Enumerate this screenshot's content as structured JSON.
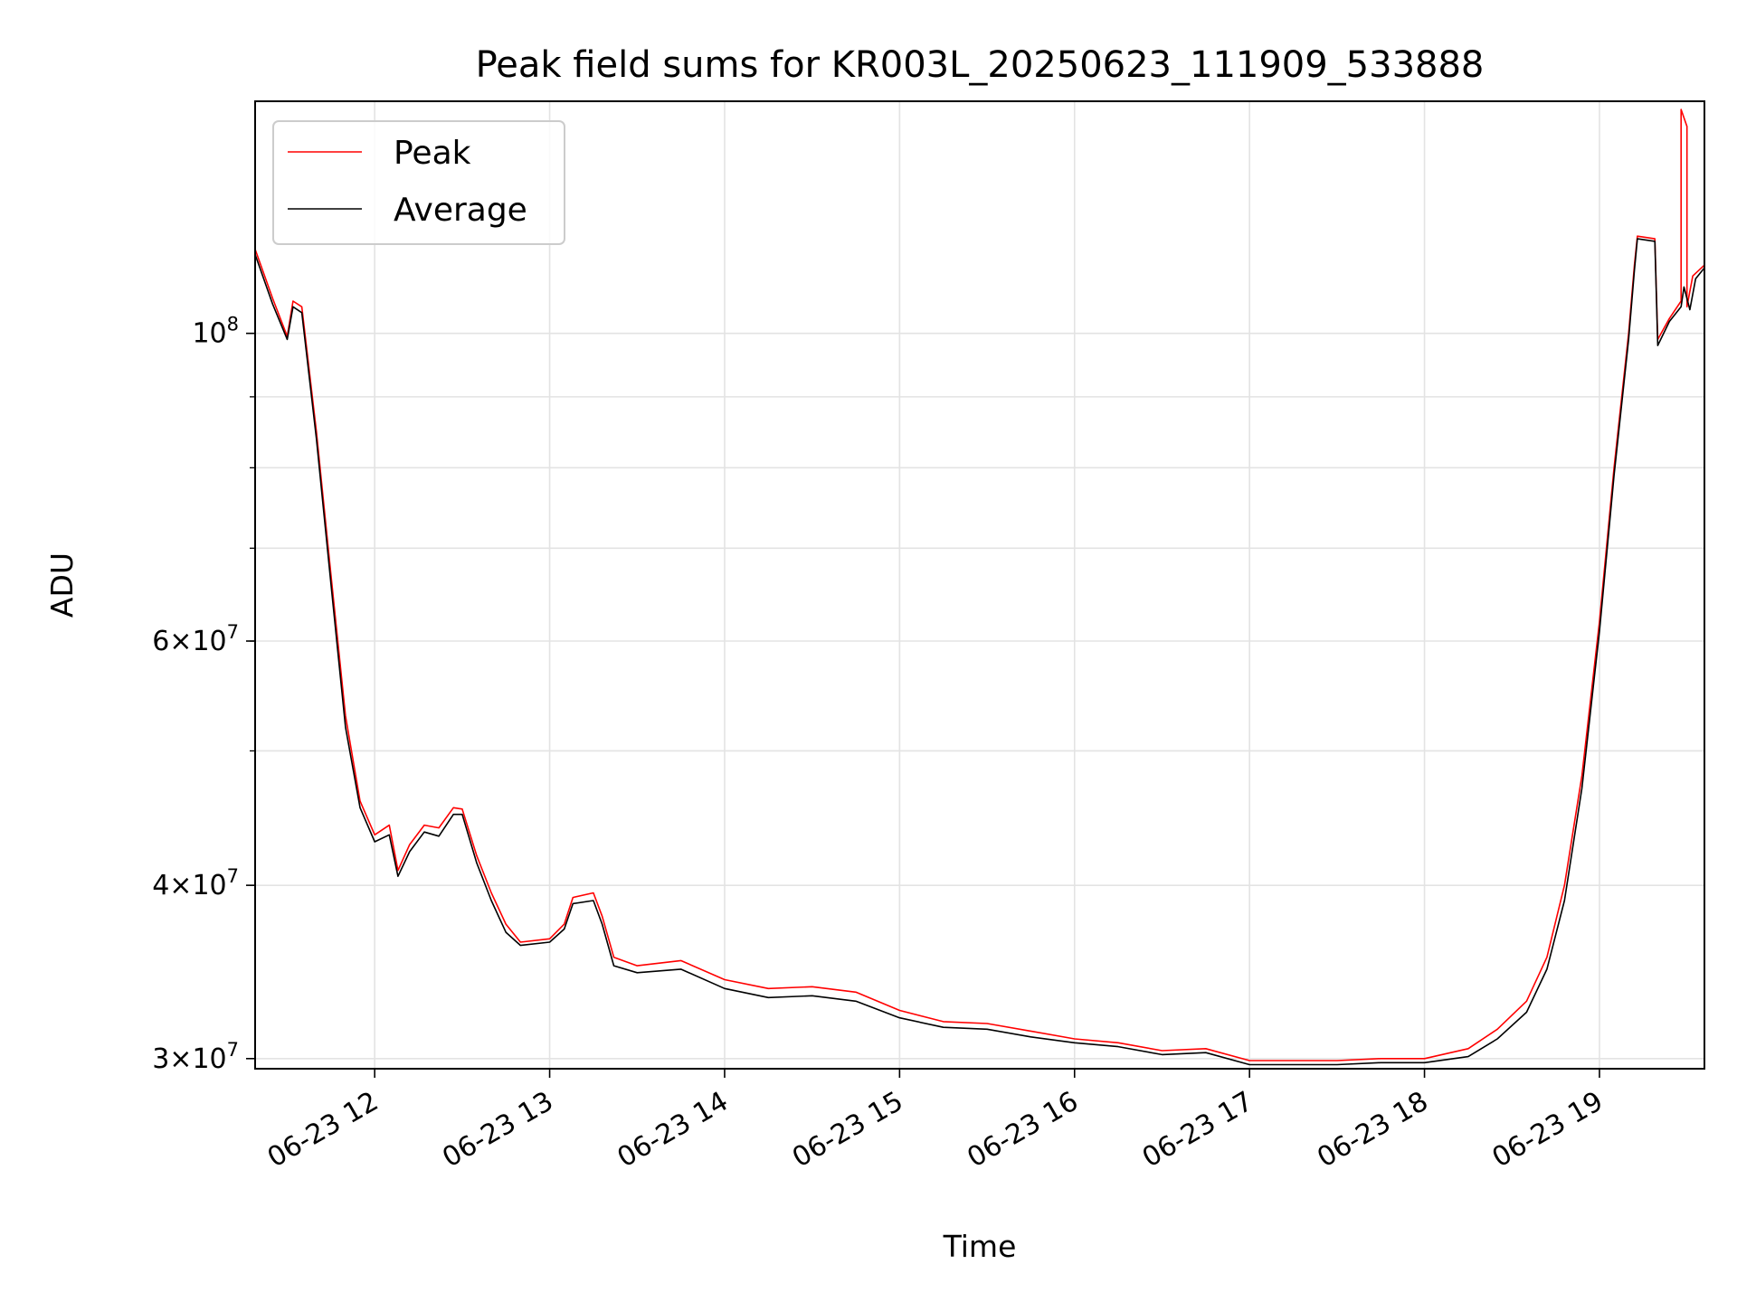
{
  "chart_data": {
    "type": "line",
    "title": "Peak field sums for KR003L_20250623_111909_533888",
    "xlabel": "Time",
    "ylabel": "ADU",
    "y_scale": "log",
    "xlim": [
      "2025-06-23 11:19",
      "2025-06-23 19:36"
    ],
    "ylim": [
      29500000,
      147000000
    ],
    "grid": true,
    "legend": "upper left",
    "x_ticks": [
      {
        "value": "2025-06-23 12:00",
        "label": "06-23 12"
      },
      {
        "value": "2025-06-23 13:00",
        "label": "06-23 13"
      },
      {
        "value": "2025-06-23 14:00",
        "label": "06-23 14"
      },
      {
        "value": "2025-06-23 15:00",
        "label": "06-23 15"
      },
      {
        "value": "2025-06-23 16:00",
        "label": "06-23 16"
      },
      {
        "value": "2025-06-23 17:00",
        "label": "06-23 17"
      },
      {
        "value": "2025-06-23 18:00",
        "label": "06-23 18"
      },
      {
        "value": "2025-06-23 19:00",
        "label": "06-23 19"
      }
    ],
    "y_ticks": [
      {
        "value": 30000000,
        "mant": "3",
        "exp": "7"
      },
      {
        "value": 40000000,
        "mant": "4",
        "exp": "7"
      },
      {
        "value": 60000000,
        "mant": "6",
        "exp": "7"
      },
      {
        "value": 100000000,
        "mant": "",
        "exp": "8"
      }
    ],
    "series": [
      {
        "name": "Peak",
        "color": "#ff0000",
        "points": [
          [
            "2025-06-23 11:19",
            115000000
          ],
          [
            "2025-06-23 11:25",
            106000000
          ],
          [
            "2025-06-23 11:30",
            99500000
          ],
          [
            "2025-06-23 11:32",
            105500000
          ],
          [
            "2025-06-23 11:35",
            104500000
          ],
          [
            "2025-06-23 11:40",
            85000000
          ],
          [
            "2025-06-23 11:45",
            67000000
          ],
          [
            "2025-06-23 11:50",
            53000000
          ],
          [
            "2025-06-23 11:55",
            46000000
          ],
          [
            "2025-06-23 12:00",
            43500000
          ],
          [
            "2025-06-23 12:05",
            44200000
          ],
          [
            "2025-06-23 12:08",
            41000000
          ],
          [
            "2025-06-23 12:12",
            42800000
          ],
          [
            "2025-06-23 12:17",
            44200000
          ],
          [
            "2025-06-23 12:22",
            44000000
          ],
          [
            "2025-06-23 12:27",
            45500000
          ],
          [
            "2025-06-23 12:30",
            45400000
          ],
          [
            "2025-06-23 12:35",
            42000000
          ],
          [
            "2025-06-23 12:40",
            39500000
          ],
          [
            "2025-06-23 12:45",
            37500000
          ],
          [
            "2025-06-23 12:50",
            36400000
          ],
          [
            "2025-06-23 13:00",
            36600000
          ],
          [
            "2025-06-23 13:05",
            37500000
          ],
          [
            "2025-06-23 13:08",
            39200000
          ],
          [
            "2025-06-23 13:15",
            39500000
          ],
          [
            "2025-06-23 13:18",
            38000000
          ],
          [
            "2025-06-23 13:22",
            35500000
          ],
          [
            "2025-06-23 13:30",
            35000000
          ],
          [
            "2025-06-23 13:45",
            35300000
          ],
          [
            "2025-06-23 14:00",
            34200000
          ],
          [
            "2025-06-23 14:15",
            33700000
          ],
          [
            "2025-06-23 14:30",
            33800000
          ],
          [
            "2025-06-23 14:45",
            33500000
          ],
          [
            "2025-06-23 15:00",
            32500000
          ],
          [
            "2025-06-23 15:15",
            31900000
          ],
          [
            "2025-06-23 15:30",
            31800000
          ],
          [
            "2025-06-23 15:45",
            31400000
          ],
          [
            "2025-06-23 16:00",
            31000000
          ],
          [
            "2025-06-23 16:15",
            30800000
          ],
          [
            "2025-06-23 16:30",
            30400000
          ],
          [
            "2025-06-23 16:45",
            30500000
          ],
          [
            "2025-06-23 17:00",
            29900000
          ],
          [
            "2025-06-23 17:15",
            29900000
          ],
          [
            "2025-06-23 17:30",
            29900000
          ],
          [
            "2025-06-23 17:45",
            30000000
          ],
          [
            "2025-06-23 18:00",
            30000000
          ],
          [
            "2025-06-23 18:15",
            30500000
          ],
          [
            "2025-06-23 18:25",
            31500000
          ],
          [
            "2025-06-23 18:35",
            33000000
          ],
          [
            "2025-06-23 18:42",
            35500000
          ],
          [
            "2025-06-23 18:48",
            40000000
          ],
          [
            "2025-06-23 18:54",
            48000000
          ],
          [
            "2025-06-23 19:00",
            62000000
          ],
          [
            "2025-06-23 19:05",
            80000000
          ],
          [
            "2025-06-23 19:10",
            100000000
          ],
          [
            "2025-06-23 19:12",
            112000000
          ],
          [
            "2025-06-23 19:13",
            117500000
          ],
          [
            "2025-06-23 19:19",
            117000000
          ],
          [
            "2025-06-23 19:20",
            99000000
          ],
          [
            "2025-06-23 19:24",
            102500000
          ],
          [
            "2025-06-23 19:28",
            105500000
          ],
          [
            "2025-06-23 19:28",
            145000000
          ],
          [
            "2025-06-23 19:30",
            141000000
          ],
          [
            "2025-06-23 19:30",
            104500000
          ],
          [
            "2025-06-23 19:32",
            110000000
          ],
          [
            "2025-06-23 19:36",
            112000000
          ]
        ]
      },
      {
        "name": "Average",
        "color": "#000000",
        "points": [
          [
            "2025-06-23 11:19",
            114000000
          ],
          [
            "2025-06-23 11:25",
            105000000
          ],
          [
            "2025-06-23 11:30",
            99000000
          ],
          [
            "2025-06-23 11:32",
            104500000
          ],
          [
            "2025-06-23 11:35",
            103500000
          ],
          [
            "2025-06-23 11:40",
            84000000
          ],
          [
            "2025-06-23 11:45",
            66000000
          ],
          [
            "2025-06-23 11:50",
            52000000
          ],
          [
            "2025-06-23 11:55",
            45500000
          ],
          [
            "2025-06-23 12:00",
            43000000
          ],
          [
            "2025-06-23 12:05",
            43500000
          ],
          [
            "2025-06-23 12:08",
            40600000
          ],
          [
            "2025-06-23 12:12",
            42300000
          ],
          [
            "2025-06-23 12:17",
            43700000
          ],
          [
            "2025-06-23 12:22",
            43400000
          ],
          [
            "2025-06-23 12:27",
            45000000
          ],
          [
            "2025-06-23 12:30",
            45000000
          ],
          [
            "2025-06-23 12:35",
            41500000
          ],
          [
            "2025-06-23 12:40",
            39000000
          ],
          [
            "2025-06-23 12:45",
            37000000
          ],
          [
            "2025-06-23 12:50",
            36200000
          ],
          [
            "2025-06-23 13:00",
            36400000
          ],
          [
            "2025-06-23 13:05",
            37200000
          ],
          [
            "2025-06-23 13:08",
            38800000
          ],
          [
            "2025-06-23 13:15",
            39000000
          ],
          [
            "2025-06-23 13:18",
            37500000
          ],
          [
            "2025-06-23 13:22",
            35000000
          ],
          [
            "2025-06-23 13:30",
            34600000
          ],
          [
            "2025-06-23 13:45",
            34800000
          ],
          [
            "2025-06-23 14:00",
            33700000
          ],
          [
            "2025-06-23 14:15",
            33200000
          ],
          [
            "2025-06-23 14:30",
            33300000
          ],
          [
            "2025-06-23 14:45",
            33000000
          ],
          [
            "2025-06-23 15:00",
            32100000
          ],
          [
            "2025-06-23 15:15",
            31600000
          ],
          [
            "2025-06-23 15:30",
            31500000
          ],
          [
            "2025-06-23 15:45",
            31100000
          ],
          [
            "2025-06-23 16:00",
            30800000
          ],
          [
            "2025-06-23 16:15",
            30600000
          ],
          [
            "2025-06-23 16:30",
            30200000
          ],
          [
            "2025-06-23 16:45",
            30300000
          ],
          [
            "2025-06-23 17:00",
            29700000
          ],
          [
            "2025-06-23 17:15",
            29700000
          ],
          [
            "2025-06-23 17:30",
            29700000
          ],
          [
            "2025-06-23 17:45",
            29800000
          ],
          [
            "2025-06-23 18:00",
            29800000
          ],
          [
            "2025-06-23 18:15",
            30100000
          ],
          [
            "2025-06-23 18:25",
            31000000
          ],
          [
            "2025-06-23 18:35",
            32400000
          ],
          [
            "2025-06-23 18:42",
            34800000
          ],
          [
            "2025-06-23 18:48",
            39000000
          ],
          [
            "2025-06-23 18:54",
            47000000
          ],
          [
            "2025-06-23 19:00",
            61000000
          ],
          [
            "2025-06-23 19:05",
            79000000
          ],
          [
            "2025-06-23 19:10",
            99000000
          ],
          [
            "2025-06-23 19:12",
            111000000
          ],
          [
            "2025-06-23 19:13",
            117000000
          ],
          [
            "2025-06-23 19:19",
            116500000
          ],
          [
            "2025-06-23 19:20",
            98000000
          ],
          [
            "2025-06-23 19:24",
            102000000
          ],
          [
            "2025-06-23 19:28",
            104500000
          ],
          [
            "2025-06-23 19:29",
            108000000
          ],
          [
            "2025-06-23 19:31",
            104000000
          ],
          [
            "2025-06-23 19:33",
            109500000
          ],
          [
            "2025-06-23 19:36",
            111500000
          ]
        ]
      }
    ]
  }
}
